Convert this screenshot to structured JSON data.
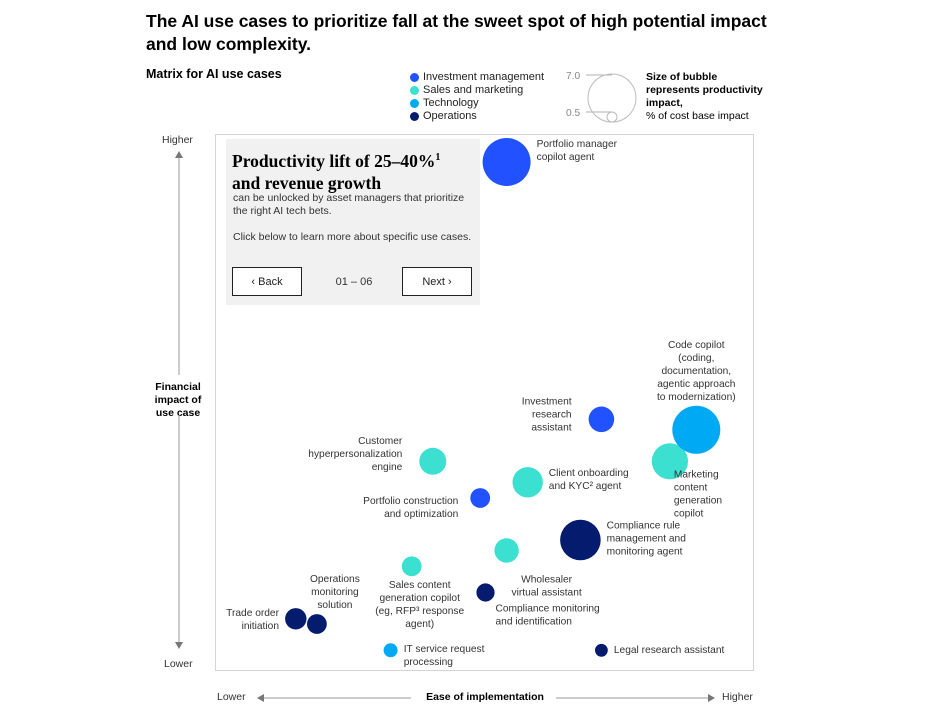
{
  "title": "The AI use cases to prioritize fall at the sweet spot of high potential impact and low complexity.",
  "subtitle": "Matrix for AI use cases",
  "legend": [
    {
      "label": "Investment management",
      "color": "#2251ff"
    },
    {
      "label": "Sales and marketing",
      "color": "#3ce0d0"
    },
    {
      "label": "Technology",
      "color": "#00a9f4"
    },
    {
      "label": "Operations",
      "color": "#051c6e"
    }
  ],
  "size_legend": {
    "max_label": "7.0",
    "min_label": "0.5",
    "note_bold": "Size of bubble represents productivity impact,",
    "note_rest": "% of cost base impact"
  },
  "panel": {
    "heading": "Productivity lift of 25–40%",
    "heading_sup": "1",
    "heading_rest": "and revenue growth",
    "body": "can be unlocked by asset managers that prioritize the right AI tech bets.",
    "cta": "Click below to learn more about specific use cases.",
    "back_label": "Back",
    "next_label": "Next",
    "pager": "01 – 06"
  },
  "chart_data": {
    "type": "scatter",
    "title": "Matrix for AI use cases",
    "xlabel": "Ease of implementation",
    "ylabel": "Financial impact of use case",
    "x_low": "Lower",
    "x_high": "Higher",
    "y_low": "Lower",
    "y_high": "Higher",
    "xlim": [
      0,
      100
    ],
    "ylim": [
      0,
      100
    ],
    "series": [
      {
        "name": "Investment management",
        "color": "#2251ff",
        "points": [
          {
            "label": [
              "Portfolio manager",
              "copilot agent"
            ],
            "x": 54,
            "y": 96,
            "size": 7.0
          },
          {
            "label": [
              "Investment",
              "research",
              "assistant"
            ],
            "x": 72,
            "y": 47,
            "size": 2.0
          },
          {
            "label": [
              "Portfolio construction",
              "and optimization"
            ],
            "x": 49,
            "y": 32,
            "size": 1.2
          }
        ]
      },
      {
        "name": "Sales and marketing",
        "color": "#3ce0d0",
        "points": [
          {
            "label": [
              "Customer",
              "hyperpersonalization",
              "engine"
            ],
            "x": 40,
            "y": 39,
            "size": 2.2
          },
          {
            "label": [
              "Client onboarding",
              "and KYC² agent"
            ],
            "x": 58,
            "y": 35,
            "size": 2.8
          },
          {
            "label": [
              "Marketing",
              "content",
              "generation",
              "copilot"
            ],
            "x": 85,
            "y": 39,
            "size": 4.0
          },
          {
            "label": [
              "Wholesaler",
              "virtual assistant"
            ],
            "x": 54,
            "y": 22,
            "size": 1.8
          },
          {
            "label": [
              "Sales content",
              "generation copilot",
              "(eg, RFP³ response",
              "agent)"
            ],
            "x": 36,
            "y": 19,
            "size": 1.2
          }
        ]
      },
      {
        "name": "Technology",
        "color": "#00a9f4",
        "points": [
          {
            "label": [
              "Code copilot",
              "(coding,",
              "documentation,",
              "agentic approach",
              "to modernization)"
            ],
            "x": 90,
            "y": 45,
            "size": 7.0
          },
          {
            "label": [
              "IT service request",
              "processing"
            ],
            "x": 32,
            "y": 3,
            "size": 0.6
          }
        ]
      },
      {
        "name": "Operations",
        "color": "#051c6e",
        "points": [
          {
            "label": [
              "Compliance rule",
              "management and",
              "monitoring agent"
            ],
            "x": 68,
            "y": 24,
            "size": 5.0
          },
          {
            "label": [
              "Compliance monitoring",
              "and identification"
            ],
            "x": 50,
            "y": 14,
            "size": 1.0
          },
          {
            "label": [
              "Trade order",
              "initiation"
            ],
            "x": 14,
            "y": 9,
            "size": 1.4
          },
          {
            "label": [
              "Operations",
              "monitoring",
              "solution"
            ],
            "x": 18,
            "y": 8,
            "size": 1.2
          },
          {
            "label": [
              "Legal research assistant"
            ],
            "x": 72,
            "y": 3,
            "size": 0.5
          }
        ]
      }
    ]
  }
}
